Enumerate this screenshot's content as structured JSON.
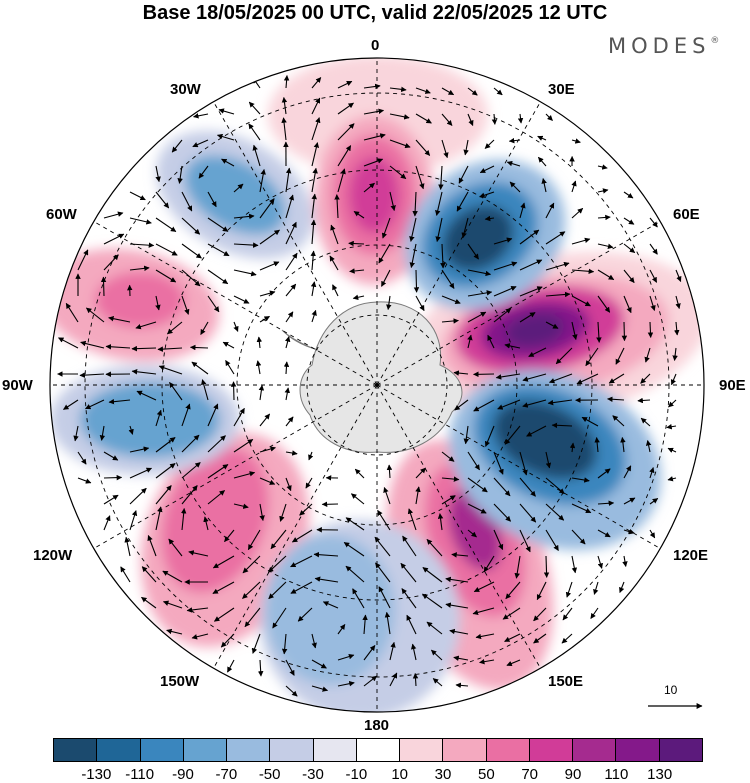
{
  "title": "Base 18/05/2025 00 UTC, valid 22/05/2025 12 UTC",
  "brand": {
    "name": "MODES",
    "mark": "®"
  },
  "longitude_labels": {
    "lon_0": "0",
    "lon_30e": "30E",
    "lon_60e": "60E",
    "lon_90e": "90E",
    "lon_120e": "120E",
    "lon_150e": "150E",
    "lon_180": "180",
    "lon_150w": "150W",
    "lon_120w": "120W",
    "lon_90w": "90W",
    "lon_60w": "60W",
    "lon_30w": "30W"
  },
  "reference_vector": "10",
  "colorbar": {
    "colors": [
      "#1b4a6e",
      "#1f6697",
      "#3a86be",
      "#66a3d0",
      "#99bbdf",
      "#c5cde6",
      "#e6e6f0",
      "#ffffff",
      "#f9d5dc",
      "#f4a9bf",
      "#ea6fa3",
      "#d13c98",
      "#a52b8f",
      "#84198a",
      "#5c1a7c"
    ],
    "labels": [
      "-130",
      "-110",
      "-90",
      "-70",
      "-50",
      "-30",
      "-10",
      "10",
      "30",
      "50",
      "70",
      "90",
      "110",
      "130"
    ]
  },
  "map_colors": {
    "land": "#e6e6e6",
    "coast": "#7a7a7a"
  }
}
